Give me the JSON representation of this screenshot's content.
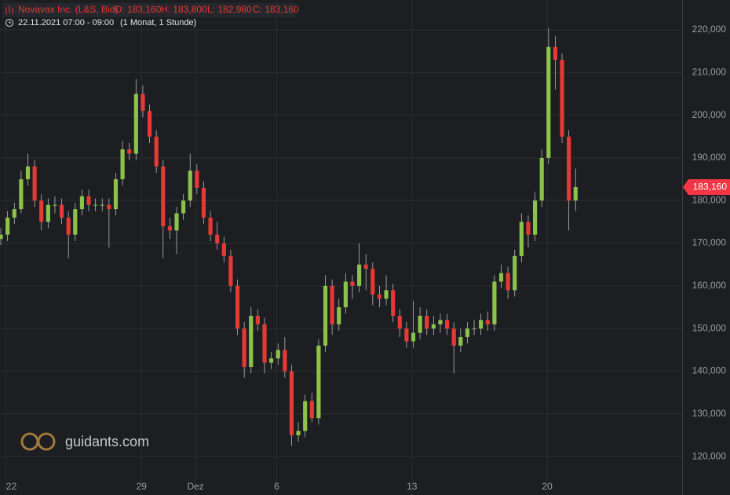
{
  "chart_data": {
    "type": "candlestick",
    "title": "Novavax Inc. (L&S, Bid)",
    "info": [
      "O: 183,160",
      "H: 183,800",
      "L: 182,980",
      "C: 183,160"
    ],
    "subtitle": "22.11.2021 07:00 - 09:00",
    "period": "(1 Monat, 1 Stunde)",
    "watermark": "guidants.com",
    "up_color": "#8bc34a",
    "down_color": "#e53935",
    "grid": true,
    "xlim": [
      -0.23,
      24.96
    ],
    "xticks": [
      {
        "value": 0,
        "label": "22"
      },
      {
        "value": 5,
        "label": "29"
      },
      {
        "value": 7,
        "label": "Dez"
      },
      {
        "value": 10,
        "label": "6"
      },
      {
        "value": 15,
        "label": "13"
      },
      {
        "value": 20,
        "label": "20"
      }
    ],
    "ylim": [
      111000,
      227000
    ],
    "yticks": [
      {
        "value": 120000,
        "label": "120,000"
      },
      {
        "value": 130000,
        "label": "130,000"
      },
      {
        "value": 140000,
        "label": "140,000"
      },
      {
        "value": 150000,
        "label": "150,000"
      },
      {
        "value": 160000,
        "label": "160,000"
      },
      {
        "value": 170000,
        "label": "170,000"
      },
      {
        "value": 180000,
        "label": "180,000"
      },
      {
        "value": 190000,
        "label": "190,000"
      },
      {
        "value": 200000,
        "label": "200,000"
      },
      {
        "value": 210000,
        "label": "210,000"
      },
      {
        "value": 220000,
        "label": "220,000"
      }
    ],
    "current_price": {
      "value": 183160,
      "label": "183,160"
    },
    "x": [
      -0.2,
      0.05,
      0.3,
      0.55,
      0.8,
      1.05,
      1.3,
      1.55,
      1.8,
      2.05,
      2.3,
      2.55,
      2.8,
      3.05,
      3.3,
      3.55,
      3.8,
      4.05,
      4.3,
      4.55,
      4.8,
      5.05,
      5.3,
      5.55,
      5.8,
      6.05,
      6.3,
      6.55,
      6.8,
      7.05,
      7.3,
      7.55,
      7.8,
      8.05,
      8.3,
      8.55,
      8.8,
      9.05,
      9.3,
      9.55,
      9.8,
      10.05,
      10.3,
      10.55,
      10.8,
      11.05,
      11.3,
      11.55,
      11.8,
      12.05,
      12.3,
      12.55,
      12.8,
      13.05,
      13.3,
      13.55,
      13.8,
      14.05,
      14.3,
      14.55,
      14.8,
      15.05,
      15.3,
      15.55,
      15.8,
      16.05,
      16.3,
      16.55,
      16.8,
      17.05,
      17.3,
      17.55,
      17.8,
      18.05,
      18.3,
      18.55,
      18.8,
      19.05,
      19.3,
      19.55,
      19.8,
      20.05,
      20.3,
      20.55,
      20.8,
      21.05
    ],
    "open": [
      171000,
      172000,
      176000,
      178000,
      185000,
      188000,
      180000,
      175000,
      179000,
      179000,
      176000,
      172000,
      178000,
      181000,
      179000,
      179000,
      179000,
      178000,
      185000,
      192000,
      191000,
      205000,
      201000,
      195000,
      188000,
      174000,
      173000,
      177000,
      180000,
      187000,
      183000,
      176000,
      172000,
      170000,
      167000,
      160000,
      150000,
      141000,
      153000,
      151000,
      142000,
      143000,
      145000,
      140000,
      125000,
      126000,
      133000,
      129000,
      146000,
      160000,
      151000,
      155000,
      161000,
      160000,
      165000,
      164000,
      158000,
      157000,
      159000,
      153000,
      150000,
      147000,
      149000,
      153000,
      150000,
      151000,
      152000,
      150000,
      146000,
      148000,
      150000,
      150000,
      152000,
      151000,
      161000,
      163000,
      159000,
      167000,
      175000,
      172000,
      180000,
      190000,
      216000,
      213000,
      195000,
      180000
    ],
    "high": [
      173500,
      177500,
      179500,
      187000,
      191000,
      189500,
      181500,
      180500,
      181000,
      180500,
      177500,
      179500,
      182500,
      182500,
      180500,
      180500,
      180500,
      186500,
      194000,
      193500,
      208500,
      207000,
      202500,
      196500,
      189500,
      176000,
      178500,
      181500,
      191000,
      188500,
      184500,
      177500,
      175000,
      171500,
      168500,
      161500,
      151500,
      155000,
      154500,
      152500,
      144500,
      146500,
      148000,
      141500,
      128000,
      134500,
      135000,
      147500,
      162500,
      161500,
      157000,
      163000,
      162500,
      170000,
      167500,
      165500,
      160000,
      162500,
      160500,
      154500,
      151500,
      156500,
      155000,
      154500,
      153000,
      153500,
      153500,
      151500,
      150000,
      151500,
      152000,
      153500,
      154000,
      162500,
      165000,
      164500,
      168500,
      177000,
      176500,
      182000,
      192000,
      220500,
      218500,
      214500,
      196500,
      187500
    ],
    "low": [
      169500,
      170500,
      174500,
      177000,
      183500,
      178500,
      173000,
      173500,
      177000,
      174500,
      166500,
      170500,
      176500,
      177500,
      177500,
      177500,
      169000,
      176500,
      183500,
      189500,
      189500,
      199500,
      193500,
      186500,
      166500,
      171000,
      167500,
      175500,
      178500,
      181500,
      174500,
      170500,
      168500,
      165500,
      158500,
      148500,
      138500,
      139500,
      149500,
      139500,
      140500,
      141500,
      138500,
      122500,
      123500,
      124500,
      128000,
      127500,
      144500,
      148500,
      149500,
      153500,
      157000,
      158500,
      159000,
      155500,
      155000,
      155500,
      151500,
      148000,
      145500,
      145500,
      147500,
      148500,
      148500,
      149000,
      148500,
      139500,
      144500,
      146500,
      148500,
      148500,
      149500,
      149500,
      159500,
      157000,
      157500,
      165500,
      169000,
      170500,
      178500,
      188500,
      206000,
      193500,
      173000,
      177500
    ],
    "close": [
      172000,
      176000,
      178000,
      185000,
      188000,
      180000,
      175000,
      179000,
      179000,
      176000,
      172000,
      178000,
      181000,
      179000,
      179000,
      179000,
      178000,
      185000,
      192000,
      191000,
      205000,
      201000,
      195000,
      188000,
      174000,
      173000,
      177000,
      180000,
      187000,
      183000,
      176000,
      172000,
      170000,
      167000,
      160000,
      150000,
      141000,
      153000,
      151000,
      142000,
      143000,
      145000,
      140000,
      125000,
      126000,
      133000,
      129000,
      146000,
      160000,
      151000,
      155000,
      161000,
      160000,
      165000,
      164000,
      158000,
      157000,
      159000,
      153000,
      150000,
      147000,
      149000,
      153000,
      150000,
      151000,
      152000,
      150000,
      146000,
      148000,
      150000,
      150000,
      152000,
      151000,
      161000,
      163000,
      159000,
      167000,
      175000,
      172000,
      180000,
      190000,
      216000,
      213000,
      195000,
      180000,
      183160
    ]
  }
}
